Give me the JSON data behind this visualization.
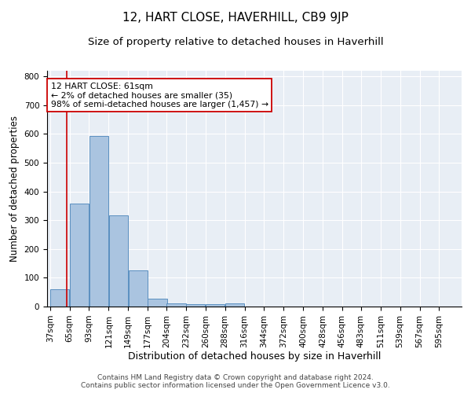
{
  "title": "12, HART CLOSE, HAVERHILL, CB9 9JP",
  "subtitle": "Size of property relative to detached houses in Haverhill",
  "xlabel": "Distribution of detached houses by size in Haverhill",
  "ylabel": "Number of detached properties",
  "footer_line1": "Contains HM Land Registry data © Crown copyright and database right 2024.",
  "footer_line2": "Contains public sector information licensed under the Open Government Licence v3.0.",
  "bin_edges": [
    37,
    65,
    93,
    121,
    149,
    177,
    204,
    232,
    260,
    288,
    316,
    344,
    372,
    400,
    428,
    456,
    483,
    511,
    539,
    567,
    595
  ],
  "bin_labels": [
    "37sqm",
    "65sqm",
    "93sqm",
    "121sqm",
    "149sqm",
    "177sqm",
    "204sqm",
    "232sqm",
    "260sqm",
    "288sqm",
    "316sqm",
    "344sqm",
    "372sqm",
    "400sqm",
    "428sqm",
    "456sqm",
    "483sqm",
    "511sqm",
    "539sqm",
    "567sqm",
    "595sqm"
  ],
  "bar_heights": [
    60,
    357,
    593,
    317,
    125,
    27,
    11,
    8,
    9,
    12,
    0,
    0,
    0,
    0,
    0,
    0,
    0,
    0,
    0,
    0
  ],
  "bar_color": "#aac4e0",
  "bar_edge_color": "#5a8fc0",
  "bar_edge_width": 0.7,
  "vline_x": 61,
  "vline_color": "#cc0000",
  "annotation_text": "12 HART CLOSE: 61sqm\n← 2% of detached houses are smaller (35)\n98% of semi-detached houses are larger (1,457) →",
  "annotation_box_color": "#ffffff",
  "annotation_box_edge": "#cc0000",
  "ylim": [
    0,
    820
  ],
  "yticks": [
    0,
    100,
    200,
    300,
    400,
    500,
    600,
    700,
    800
  ],
  "bg_color": "#e8eef5",
  "grid_color": "#ffffff",
  "title_fontsize": 11,
  "subtitle_fontsize": 9.5,
  "axis_label_fontsize": 8.5,
  "tick_fontsize": 7.5,
  "footer_fontsize": 6.5,
  "annotation_fontsize": 7.8
}
